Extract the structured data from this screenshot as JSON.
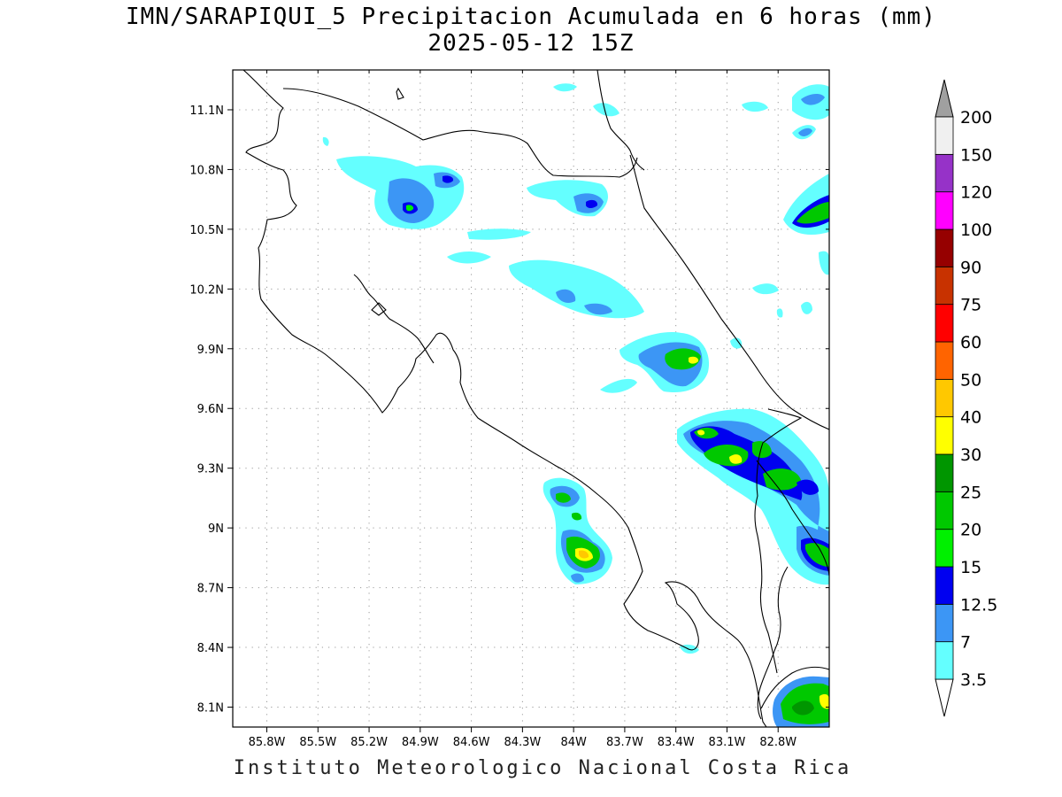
{
  "title": {
    "line1": "IMN/SARAPIQUI_5 Precipitacion Acumulada en 6 horas (mm)",
    "line2": "2025-05-12 15Z"
  },
  "footer": "Instituto Meteorologico Nacional Costa Rica",
  "map": {
    "lon_range": [
      -86.0,
      -82.5
    ],
    "lat_range": [
      8.0,
      11.3
    ],
    "lon_ticks": [
      "85.8W",
      "85.5W",
      "85.2W",
      "84.9W",
      "84.6W",
      "84.3W",
      "84W",
      "83.7W",
      "83.4W",
      "83.1W",
      "82.8W"
    ],
    "lat_ticks": [
      "11.1N",
      "10.8N",
      "10.5N",
      "10.2N",
      "9.9N",
      "9.6N",
      "9.3N",
      "9N",
      "8.7N",
      "8.4N",
      "8.1N"
    ],
    "grid": "dotted"
  },
  "colorbar": {
    "labels": [
      "3.5",
      "7",
      "12.5",
      "15",
      "20",
      "25",
      "30",
      "40",
      "50",
      "60",
      "75",
      "90",
      "100",
      "120",
      "150",
      "200"
    ],
    "colors": [
      "#64ffff",
      "#3c96f5",
      "#0000f0",
      "#00f000",
      "#00c800",
      "#009600",
      "#ffff00",
      "#ffc800",
      "#ff6400",
      "#ff0000",
      "#c83200",
      "#960000",
      "#ff00ff",
      "#9632c8",
      "#f0f0f0"
    ],
    "top_arrow_color": "#a0a0a0",
    "bottom_arrow_color": "#ffffff"
  }
}
